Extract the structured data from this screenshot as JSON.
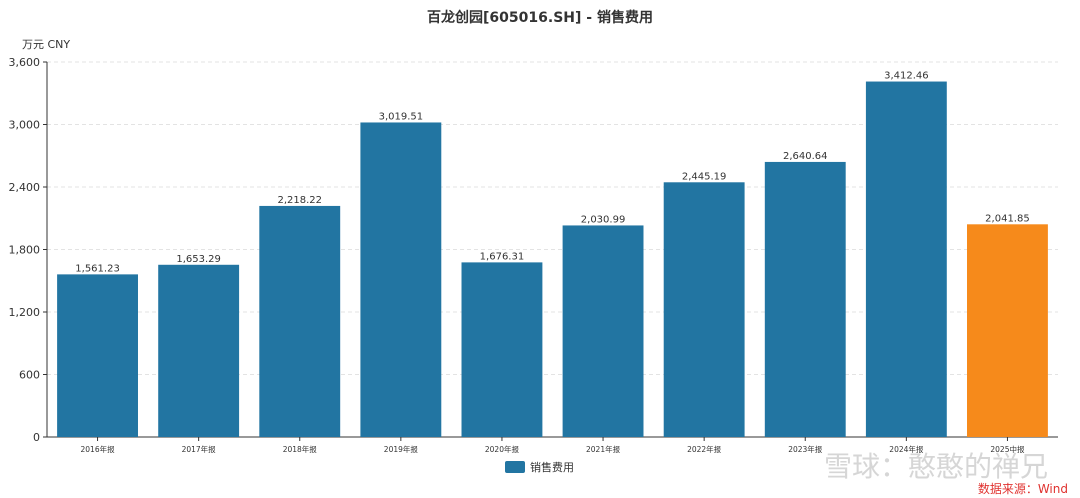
{
  "chart_data": {
    "type": "bar",
    "title": "百龙创园[605016.SH] - 销售费用",
    "unit_label": "万元  CNY",
    "categories": [
      "2016年报",
      "2017年报",
      "2018年报",
      "2019年报",
      "2020年报",
      "2021年报",
      "2022年报",
      "2023年报",
      "2024年报",
      "2025中报"
    ],
    "series": [
      {
        "name": "销售费用",
        "values": [
          1561.23,
          1653.29,
          2218.22,
          3019.51,
          1676.31,
          2030.99,
          2445.19,
          2640.64,
          3412.46,
          2041.85
        ]
      }
    ],
    "value_labels": [
      "1,561.23",
      "1,653.29",
      "2,218.22",
      "3,019.51",
      "1,676.31",
      "2,030.99",
      "2,445.19",
      "2,640.64",
      "3,412.46",
      "2,041.85"
    ],
    "highlight_index": 9,
    "ylim": [
      0,
      3600
    ],
    "yticks": [
      0,
      600,
      1200,
      1800,
      2400,
      3000,
      3600
    ],
    "ytick_labels": [
      "0",
      "600",
      "1,200",
      "1,800",
      "2,400",
      "3,000",
      "3,600"
    ],
    "grid": true,
    "legend_position": "bottom"
  },
  "colors": {
    "bar": "#2275a2",
    "highlight": "#f68a1b",
    "grid": "#e3e3e3",
    "axis": "#333333",
    "source": "#e0322f"
  },
  "source": "数据来源：Wind",
  "watermark": "雪球：憨憨的禅兄"
}
